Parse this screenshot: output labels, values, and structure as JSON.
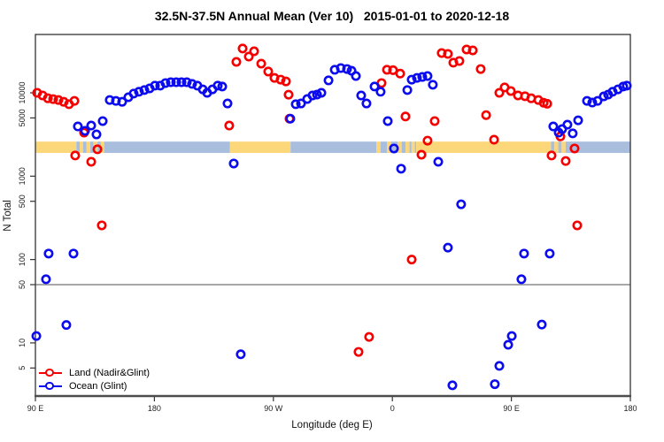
{
  "title": "32.5N-37.5N Annual Mean (Ver 10)   2015-01-01 to 2020-12-18",
  "chart_data": {
    "type": "scatter",
    "title": "32.5N-37.5N Annual Mean (Ver 10)   2015-01-01 to 2020-12-18",
    "xlabel": "Longitude (deg E)",
    "ylabel": "N Total",
    "x_axis": {
      "range": [
        90,
        540
      ],
      "ticks": [
        {
          "value": 90,
          "label": "90 E"
        },
        {
          "value": 180,
          "label": "180"
        },
        {
          "value": 270,
          "label": "90 W"
        },
        {
          "value": 360,
          "label": "0"
        },
        {
          "value": 450,
          "label": "90 E"
        },
        {
          "value": 540,
          "label": "180"
        }
      ]
    },
    "y_axis": {
      "scale": "log",
      "range": [
        2.3,
        50000
      ],
      "ticks": [
        {
          "value": 10000,
          "label": "10000"
        },
        {
          "value": 5000,
          "label": "5000"
        },
        {
          "value": 1000,
          "label": "1000"
        },
        {
          "value": 500,
          "label": "500"
        },
        {
          "value": 100,
          "label": "100"
        },
        {
          "value": 50,
          "label": "50"
        },
        {
          "value": 10,
          "label": "10"
        },
        {
          "value": 5,
          "label": "5"
        }
      ]
    },
    "reference_line_y": 50,
    "grid": "off",
    "legend_position": "bottom-left",
    "land_ocean_band": {
      "y_range": [
        1900,
        2600
      ],
      "land_color": "#FBD77A",
      "ocean_color": "#A9BEDC",
      "segments": [
        {
          "from": 90,
          "to": 121,
          "type": "land"
        },
        {
          "from": 121,
          "to": 123.5,
          "type": "ocean"
        },
        {
          "from": 123.5,
          "to": 126,
          "type": "land"
        },
        {
          "from": 126,
          "to": 128.5,
          "type": "ocean"
        },
        {
          "from": 128.5,
          "to": 131.5,
          "type": "land"
        },
        {
          "from": 131.5,
          "to": 134,
          "type": "ocean"
        },
        {
          "from": 134,
          "to": 137,
          "type": "land"
        },
        {
          "from": 137,
          "to": 139.5,
          "type": "ocean"
        },
        {
          "from": 139.5,
          "to": 142,
          "type": "land"
        },
        {
          "from": 142,
          "to": 237,
          "type": "ocean"
        },
        {
          "from": 237,
          "to": 283,
          "type": "land"
        },
        {
          "from": 283,
          "to": 348,
          "type": "ocean"
        },
        {
          "from": 348,
          "to": 351,
          "type": "land"
        },
        {
          "from": 351,
          "to": 356,
          "type": "ocean"
        },
        {
          "from": 356,
          "to": 359,
          "type": "land"
        },
        {
          "from": 359,
          "to": 364,
          "type": "ocean"
        },
        {
          "from": 364,
          "to": 367,
          "type": "land"
        },
        {
          "from": 367,
          "to": 370,
          "type": "ocean"
        },
        {
          "from": 370,
          "to": 373,
          "type": "land"
        },
        {
          "from": 373,
          "to": 374.5,
          "type": "ocean"
        },
        {
          "from": 374.5,
          "to": 377,
          "type": "land"
        },
        {
          "from": 377,
          "to": 378,
          "type": "ocean"
        },
        {
          "from": 378,
          "to": 480,
          "type": "land"
        },
        {
          "from": 480,
          "to": 482.5,
          "type": "ocean"
        },
        {
          "from": 482.5,
          "to": 485.5,
          "type": "land"
        },
        {
          "from": 485.5,
          "to": 488,
          "type": "ocean"
        },
        {
          "from": 488,
          "to": 491,
          "type": "land"
        },
        {
          "from": 491,
          "to": 540,
          "type": "ocean"
        }
      ]
    },
    "series": [
      {
        "name": "Land (Nadir&Glint)",
        "color": "#F50000",
        "points": [
          [
            91.3,
            10000
          ],
          [
            95.4,
            9300
          ],
          [
            99.4,
            8600
          ],
          [
            103.4,
            8400
          ],
          [
            107.4,
            8200
          ],
          [
            111.4,
            7800
          ],
          [
            115.4,
            7300
          ],
          [
            119.5,
            8000
          ],
          [
            120.1,
            1770
          ],
          [
            126.8,
            3330
          ],
          [
            132.2,
            1490
          ],
          [
            136.9,
            2100
          ],
          [
            140.2,
            257
          ],
          [
            236.6,
            4050
          ],
          [
            242.0,
            23500
          ],
          [
            246.7,
            34000
          ],
          [
            251.4,
            27200
          ],
          [
            255.4,
            31500
          ],
          [
            260.8,
            22400
          ],
          [
            266.1,
            18000
          ],
          [
            270.8,
            15100
          ],
          [
            275.5,
            14400
          ],
          [
            279.5,
            13700
          ],
          [
            281.5,
            9500
          ],
          [
            282.2,
            4900
          ],
          [
            351.8,
            13100
          ],
          [
            355.9,
            18900
          ],
          [
            360.5,
            18700
          ],
          [
            365.9,
            17000
          ],
          [
            369.9,
            5200
          ],
          [
            374.6,
            100
          ],
          [
            382.0,
            1810
          ],
          [
            386.6,
            2670
          ],
          [
            392.0,
            4580
          ],
          [
            397.3,
            30000
          ],
          [
            402.0,
            29300
          ],
          [
            406.1,
            23000
          ],
          [
            410.7,
            24100
          ],
          [
            416.1,
            33100
          ],
          [
            420.8,
            32300
          ],
          [
            426.8,
            19300
          ],
          [
            430.9,
            5400
          ],
          [
            436.9,
            2740
          ],
          [
            440.9,
            10000
          ],
          [
            444.9,
            11600
          ],
          [
            449.6,
            10500
          ],
          [
            455.0,
            9300
          ],
          [
            460.3,
            9100
          ],
          [
            465.0,
            8600
          ],
          [
            470.4,
            8200
          ],
          [
            474.4,
            7600
          ],
          [
            477.1,
            7400
          ],
          [
            480.4,
            1770
          ],
          [
            487.1,
            3000
          ],
          [
            491.1,
            1520
          ],
          [
            497.8,
            2150
          ],
          [
            499.8,
            257
          ],
          [
            334.4,
            7.8
          ],
          [
            342.4,
            11.8
          ]
        ]
      },
      {
        "name": "Ocean (Glint)",
        "color": "#0B0BEE",
        "points": [
          [
            122.1,
            3950
          ],
          [
            127.5,
            3500
          ],
          [
            132.2,
            4050
          ],
          [
            136.2,
            3170
          ],
          [
            140.9,
            4580
          ],
          [
            146.2,
            8200
          ],
          [
            150.9,
            8000
          ],
          [
            155.6,
            7800
          ],
          [
            160.3,
            8850
          ],
          [
            164.3,
            9800
          ],
          [
            168.3,
            10300
          ],
          [
            172.4,
            10800
          ],
          [
            176.4,
            11300
          ],
          [
            180.4,
            12200
          ],
          [
            184.4,
            12200
          ],
          [
            188.4,
            13100
          ],
          [
            192.4,
            13400
          ],
          [
            196.5,
            13400
          ],
          [
            200.5,
            13400
          ],
          [
            204.5,
            13400
          ],
          [
            208.5,
            12800
          ],
          [
            212.5,
            12200
          ],
          [
            216.6,
            11000
          ],
          [
            219.9,
            10000
          ],
          [
            223.9,
            11000
          ],
          [
            227.9,
            12200
          ],
          [
            231.3,
            11900
          ],
          [
            235.3,
            7450
          ],
          [
            240.0,
            1420
          ],
          [
            245.3,
            7.3
          ],
          [
            282.8,
            4900
          ],
          [
            286.9,
            7300
          ],
          [
            290.9,
            7450
          ],
          [
            295.6,
            8430
          ],
          [
            299.6,
            9290
          ],
          [
            303.0,
            9520
          ],
          [
            306.3,
            10000
          ],
          [
            311.7,
            14100
          ],
          [
            316.4,
            18900
          ],
          [
            321.0,
            19800
          ],
          [
            325.7,
            19300
          ],
          [
            329.1,
            18400
          ],
          [
            332.4,
            15900
          ],
          [
            336.4,
            9290
          ],
          [
            340.4,
            7450
          ],
          [
            346.5,
            11900
          ],
          [
            351.1,
            10300
          ],
          [
            356.5,
            4580
          ],
          [
            361.2,
            2150
          ],
          [
            366.6,
            1230
          ],
          [
            371.3,
            10800
          ],
          [
            374.6,
            14400
          ],
          [
            378.6,
            15100
          ],
          [
            382.6,
            15500
          ],
          [
            386.6,
            15900
          ],
          [
            390.6,
            12500
          ],
          [
            394.7,
            1490
          ],
          [
            402.0,
            139
          ],
          [
            412.0,
            460
          ],
          [
            481.7,
            3950
          ],
          [
            485.8,
            3330
          ],
          [
            488.4,
            3670
          ],
          [
            492.4,
            4150
          ],
          [
            496.4,
            3260
          ],
          [
            500.5,
            4680
          ],
          [
            507.2,
            8000
          ],
          [
            511.2,
            7640
          ],
          [
            515.2,
            8000
          ],
          [
            519.9,
            9070
          ],
          [
            523.2,
            9520
          ],
          [
            526.6,
            10300
          ],
          [
            530.6,
            11000
          ],
          [
            534.6,
            11900
          ],
          [
            537.3,
            12200
          ],
          [
            459.6,
            118
          ],
          [
            479.0,
            118
          ],
          [
            457.6,
            58
          ],
          [
            473.0,
            16.6
          ],
          [
            450.3,
            12.1
          ],
          [
            447.6,
            9.5
          ],
          [
            440.9,
            5.3
          ],
          [
            437.5,
            3.2
          ],
          [
            405.4,
            3.1
          ],
          [
            100.0,
            118
          ],
          [
            118.8,
            118
          ],
          [
            98.0,
            58
          ],
          [
            90.7,
            12.1
          ],
          [
            113.4,
            16.4
          ]
        ]
      }
    ],
    "style": {
      "frame_color": "#333333",
      "x_axis_line_color": "#4D4D4D",
      "reference_line_color": "#8C8C8C",
      "marker": "open-circle"
    }
  }
}
